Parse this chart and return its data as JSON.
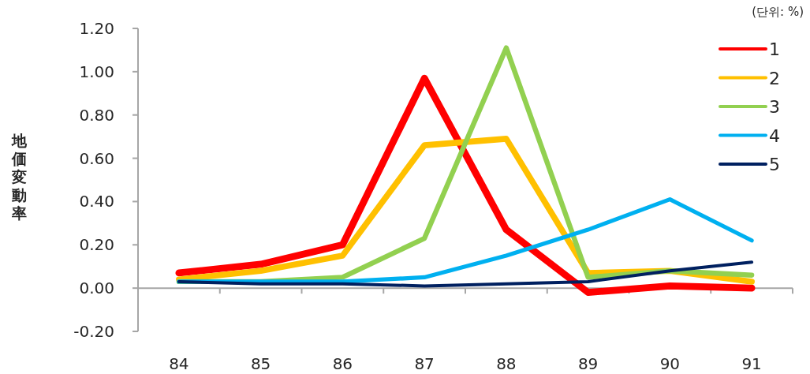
{
  "chart_data": {
    "type": "line",
    "ylabel": "地価変動率",
    "annotations": [
      "(단위: %)"
    ],
    "categories": [
      "84",
      "85",
      "86",
      "87",
      "88",
      "89",
      "90",
      "91"
    ],
    "ylim": [
      -0.2,
      1.2
    ],
    "yticks": [
      {
        "value": -0.2,
        "label": "-0.20"
      },
      {
        "value": 0,
        "label": "0.00"
      },
      {
        "value": 0.2,
        "label": "0.20"
      },
      {
        "value": 0.4,
        "label": "0.40"
      },
      {
        "value": 0.6,
        "label": "0.60"
      },
      {
        "value": 0.8,
        "label": "0.80"
      },
      {
        "value": 1.0,
        "label": "1.00"
      },
      {
        "value": 1.2,
        "label": "1.20"
      }
    ],
    "legend": "top right",
    "series": [
      {
        "name": "1",
        "color": "#ff0000",
        "values": [
          0.07,
          0.11,
          0.2,
          0.97,
          0.27,
          -0.02,
          0.01,
          0.0
        ]
      },
      {
        "name": "2",
        "color": "#ffc000",
        "values": [
          0.04,
          0.08,
          0.15,
          0.66,
          0.69,
          0.07,
          0.08,
          0.03
        ]
      },
      {
        "name": "3",
        "color": "#92d050",
        "values": [
          0.03,
          0.03,
          0.05,
          0.23,
          1.11,
          0.05,
          0.08,
          0.06
        ]
      },
      {
        "name": "4",
        "color": "#00b0f0",
        "values": [
          0.03,
          0.03,
          0.03,
          0.05,
          0.15,
          0.27,
          0.41,
          0.22
        ]
      },
      {
        "name": "5",
        "color": "#002060",
        "values": [
          0.03,
          0.02,
          0.02,
          0.01,
          0.02,
          0.03,
          0.08,
          0.12
        ]
      }
    ]
  }
}
